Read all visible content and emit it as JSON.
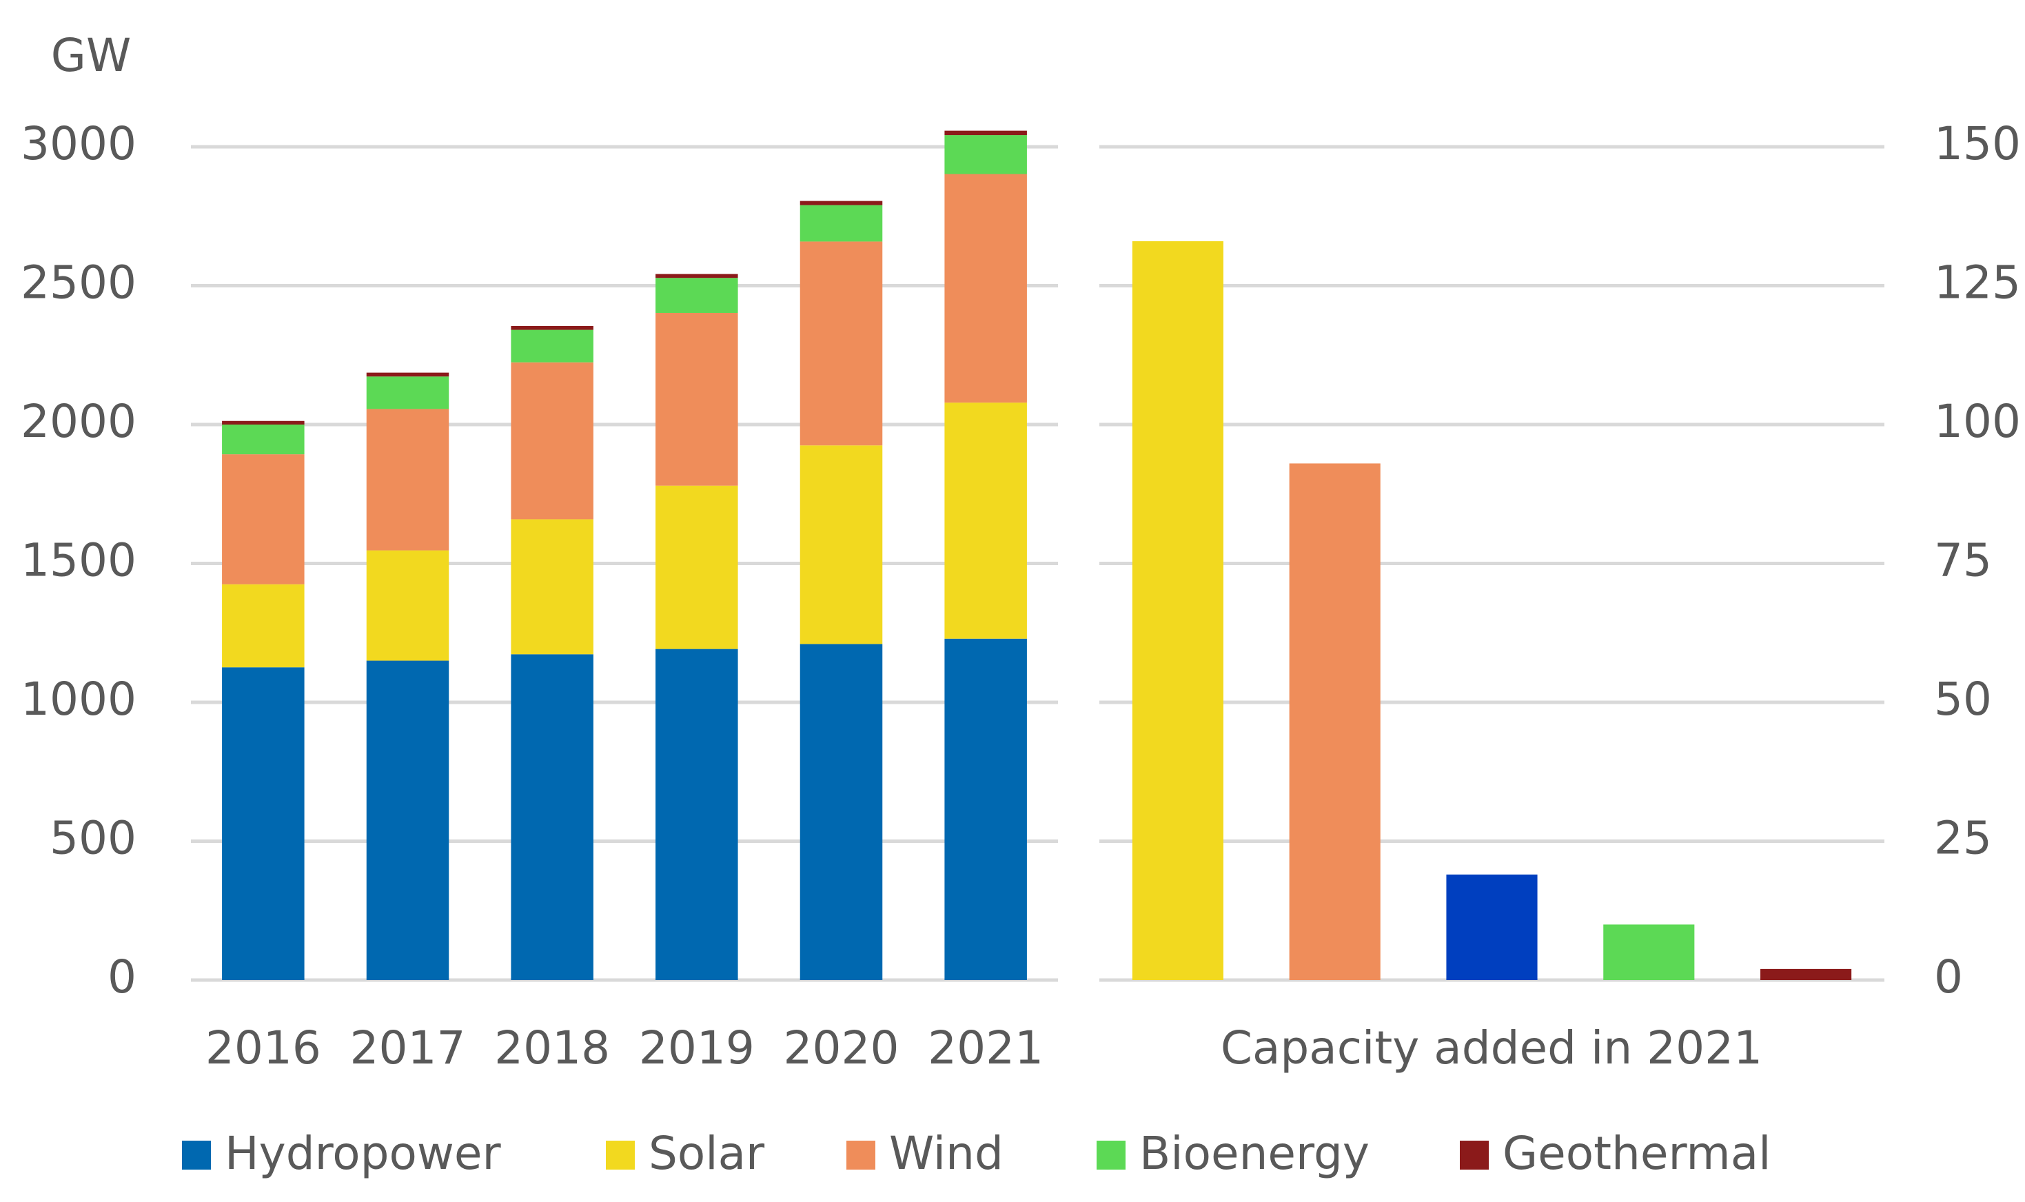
{
  "chart_data": [
    {
      "type": "stacked_bar",
      "y_label": "GW",
      "categories": [
        "2016",
        "2017",
        "2018",
        "2019",
        "2020",
        "2021"
      ],
      "series": [
        {
          "name": "Hydropower",
          "color": "#0068b0",
          "values": [
            1126,
            1150,
            1173,
            1192,
            1210,
            1229
          ]
        },
        {
          "name": "Solar",
          "color": "#f2d91f",
          "values": [
            299,
            397,
            486,
            588,
            715,
            850
          ]
        },
        {
          "name": "Wind",
          "color": "#ef8d5a",
          "values": [
            468,
            509,
            565,
            622,
            734,
            823
          ]
        },
        {
          "name": "Bioenergy",
          "color": "#5cd955",
          "values": [
            107,
            117,
            117,
            126,
            131,
            140
          ]
        },
        {
          "name": "Geothermal",
          "color": "#8b1a1a",
          "values": [
            13,
            14,
            14,
            14,
            15,
            16
          ]
        }
      ],
      "ylim": [
        0,
        3000
      ],
      "yticks": [
        0,
        500,
        1000,
        1500,
        2000,
        2500,
        3000
      ],
      "grid": true,
      "legend": "bottom"
    },
    {
      "type": "bar",
      "x_label": "Capacity added in 2021",
      "categories": [
        null,
        null,
        null,
        null,
        null
      ],
      "values": [
        133,
        93,
        19,
        10,
        2
      ],
      "colors": [
        "#f2d91f",
        "#ef8d5a",
        "#003fbf",
        "#5cd955",
        "#8b1a1a"
      ],
      "ylim": [
        0,
        150
      ],
      "yticks": [
        0,
        25,
        50,
        75,
        100,
        125,
        150
      ],
      "grid": true
    }
  ]
}
